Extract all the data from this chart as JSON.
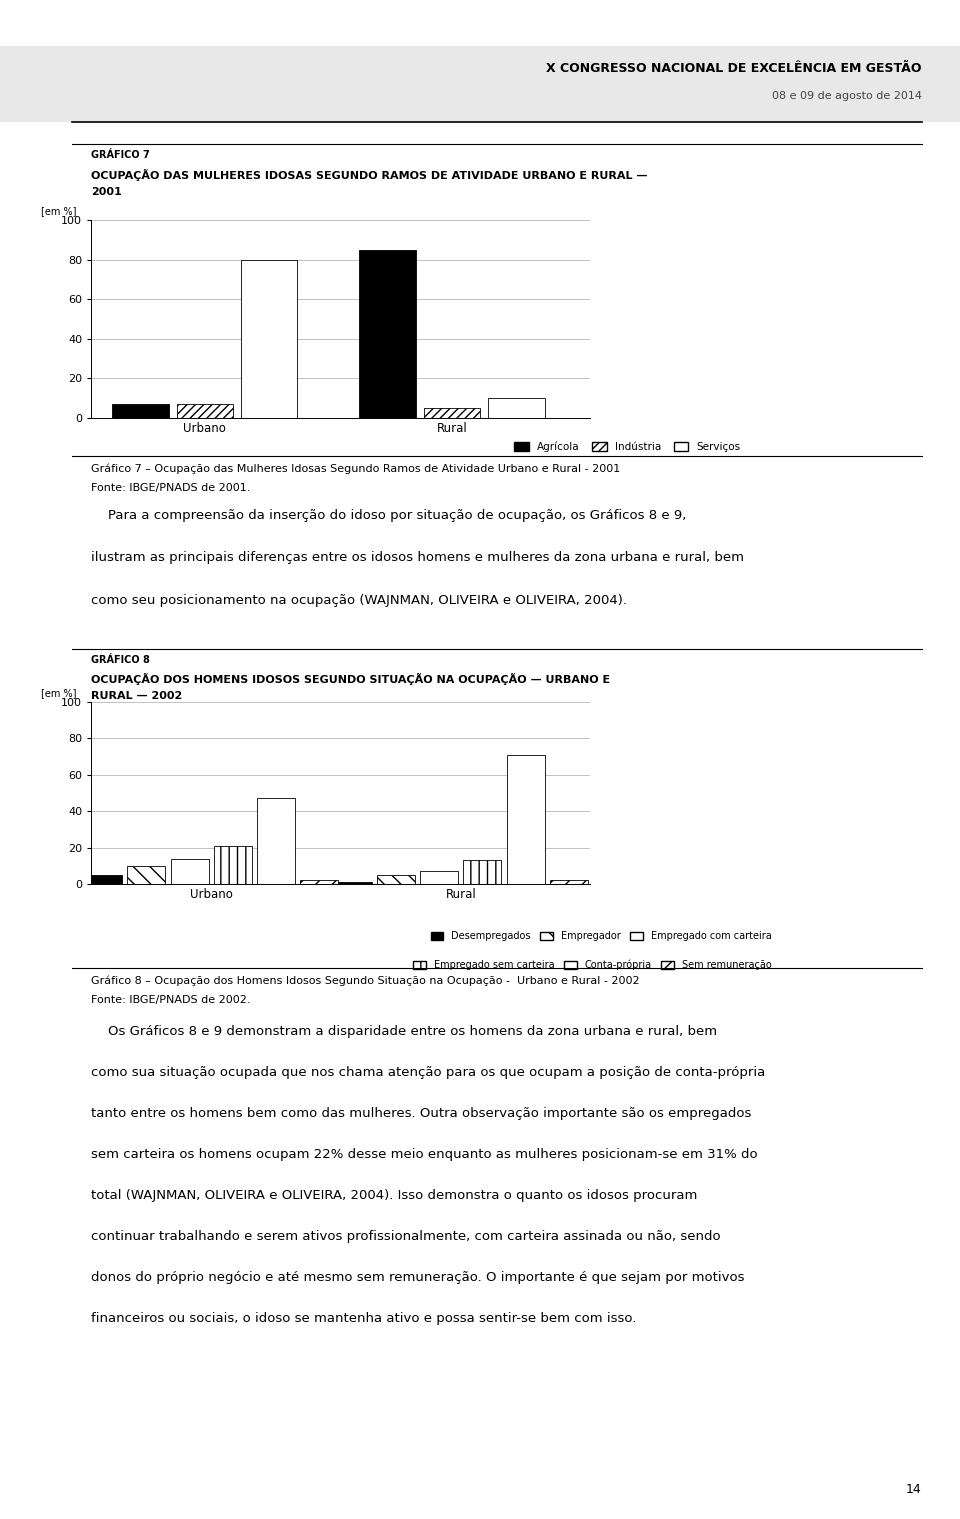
{
  "page_bg": "#ffffff",
  "header_bg": "#e8e8e8",
  "chart7": {
    "title_line1": "GRÁFICO 7",
    "title_line2": "OCUPAÇÃO DAS MULHERES IDOSAS SEGUNDO RAMOS DE ATIVIDADE URBANO E RURAL —",
    "title_line3": "2001",
    "ylabel": "[em %]",
    "ylim": [
      0,
      100
    ],
    "yticks": [
      0,
      20,
      40,
      60,
      80,
      100
    ],
    "groups": [
      "Urbano",
      "Rural"
    ],
    "urbano_values": [
      7,
      7,
      80
    ],
    "rural_values": [
      85,
      5,
      10
    ],
    "legend_labels": [
      "Agrícola",
      "Indústria",
      "Serviços"
    ],
    "bar_colors": [
      "#000000",
      "#ffffff",
      "#ffffff"
    ],
    "bar_hatches": [
      "",
      "////",
      ""
    ],
    "caption_line1": "Gráfico 7 – Ocupação das Mulheres Idosas Segundo Ramos de Atividade Urbano e Rural - 2001",
    "caption_line2": "Fonte: IBGE/PNADS de 2001."
  },
  "paragraph_lines": [
    "    Para a compreensão da inserção do idoso por situação de ocupação, os Gráficos 8 e 9,",
    "ilustram as principais diferenças entre os idosos homens e mulheres da zona urbana e rural, bem",
    "como seu posicionamento na ocupação (WAJNMAN, OLIVEIRA e OLIVEIRA, 2004)."
  ],
  "chart8": {
    "title_line1": "GRÁFICO 8",
    "title_line2": "OCUPAÇÃO DOS HOMENS IDOSOS SEGUNDO SITUAÇÃO NA OCUPAÇÃO — URBANO E",
    "title_line3": "RURAL — 2002",
    "ylabel": "[em %]",
    "ylim": [
      0,
      100
    ],
    "yticks": [
      0,
      20,
      40,
      60,
      80,
      100
    ],
    "groups": [
      "Urbano",
      "Rural"
    ],
    "urbano_values": [
      5,
      10,
      14,
      21,
      47,
      2
    ],
    "rural_values": [
      1,
      5,
      7,
      13,
      71,
      2
    ],
    "legend_labels": [
      "Desempregados",
      "Empregador",
      "Empregado com carteira",
      "Empregado sem carteira",
      "Conta-própria",
      "Sem remuneração"
    ],
    "bar_colors": [
      "#000000",
      "#ffffff",
      "#ffffff",
      "#ffffff",
      "#ffffff",
      "#ffffff"
    ],
    "bar_hatches": [
      "",
      "\\\\",
      "==",
      "||",
      "",
      "//"
    ],
    "caption_line1": "Gráfico 8 – Ocupação dos Homens Idosos Segundo Situação na Ocupação -  Urbano e Rural - 2002",
    "caption_line2": "Fonte: IBGE/PNADS de 2002."
  },
  "paragraph2_lines": [
    "    Os Gráficos 8 e 9 demonstram a disparidade entre os homens da zona urbana e rural, bem",
    "como sua situação ocupada que nos chama atenção para os que ocupam a posição de conta-própria",
    "tanto entre os homens bem como das mulheres. Outra observação importante são os empregados",
    "sem carteira os homens ocupam 22% desse meio enquanto as mulheres posicionam-se em 31% do",
    "total (WAJNMAN, OLIVEIRA e OLIVEIRA, 2004). Isso demonstra o quanto os idosos procuram",
    "continuar trabalhando e serem ativos profissionalmente, com carteira assinada ou não, sendo",
    "donos do próprio negócio e até mesmo sem remuneração. O importante é que sejam por motivos",
    "financeiros ou sociais, o idoso se mantenha ativo e possa sentir-se bem com isso."
  ],
  "page_number": "14",
  "header_right_line1": "X CONGRESSO NACIONAL DE EXCELÊNCIA EM GESTÃO",
  "header_right_line2": "08 e 09 de agosto de 2014"
}
